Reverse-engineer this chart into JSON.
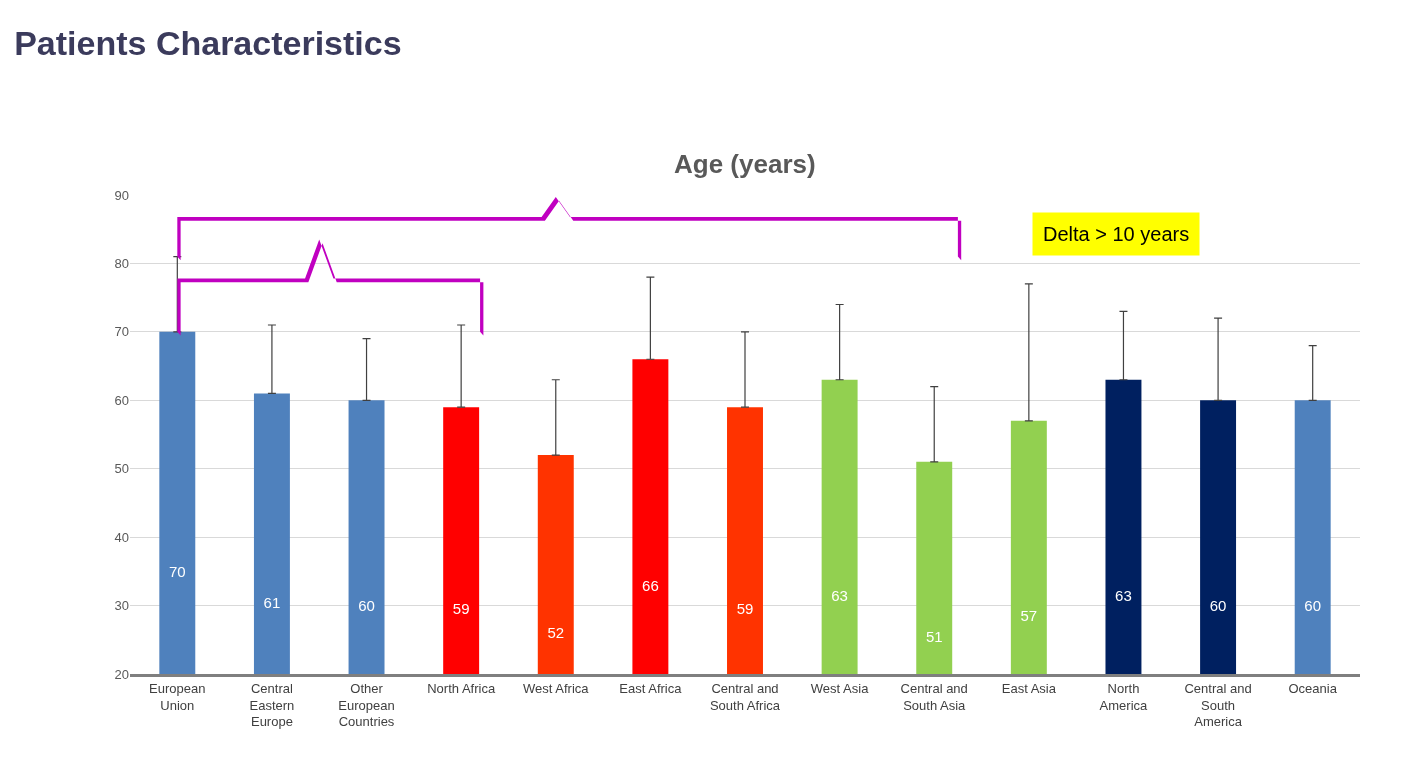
{
  "chart_data": {
    "type": "bar",
    "title": "Patients Characteristics",
    "subtitle": "Age (years)",
    "categories": [
      "European Union",
      "Central Eastern Europe",
      "Other European Countries",
      "North Africa",
      "West Africa",
      "East Africa",
      "Central and South Africa",
      "West Asia",
      "Central and South Asia",
      "East Asia",
      "North America",
      "Central and South America",
      "Oceania"
    ],
    "values": [
      70,
      61,
      60,
      59,
      52,
      66,
      59,
      63,
      51,
      57,
      63,
      60,
      60
    ],
    "colors": [
      "#4f81bd",
      "#4f81bd",
      "#4f81bd",
      "#ff0000",
      "#ff3300",
      "#ff0000",
      "#ff3300",
      "#92d050",
      "#92d050",
      "#92d050",
      "#002060",
      "#002060",
      "#4f81bd"
    ],
    "errors": [
      [
        70,
        81
      ],
      [
        61,
        71
      ],
      [
        60,
        69
      ],
      [
        59,
        71
      ],
      [
        52,
        63
      ],
      [
        66,
        78
      ],
      [
        59,
        70
      ],
      [
        63,
        74
      ],
      [
        51,
        62
      ],
      [
        57,
        77
      ],
      [
        63,
        73
      ],
      [
        60,
        72
      ],
      [
        60,
        68
      ]
    ],
    "data_labels": true,
    "ylim": [
      20,
      90
    ],
    "yticks": [
      20,
      30,
      40,
      50,
      60,
      70,
      80,
      90
    ],
    "grid": "y",
    "annotations": [
      "Delta > 10 years"
    ]
  }
}
